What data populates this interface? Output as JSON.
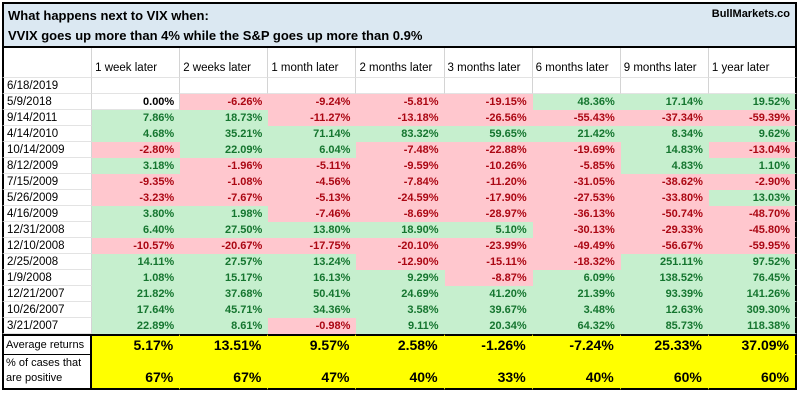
{
  "title": {
    "line1": "What happens next to VIX when:",
    "line2": "VVIX goes up more than 4% while the S&P goes up more than 0.9%",
    "brand": "BullMarkets.co"
  },
  "chart_data": {
    "type": "table",
    "title": "What happens next to VIX when:",
    "subtitle": "VVIX goes up more than 4% while the S&P goes up more than 0.9%",
    "source": "BullMarkets.co",
    "columns": [
      "1 week later",
      "2 weeks later",
      "1 month later",
      "2 months later",
      "3 months later",
      "6 months later",
      "9 months later",
      "1 year later"
    ],
    "rows": [
      {
        "date": "6/18/2019",
        "values": [
          "",
          "",
          "",
          "",
          "",
          "",
          "",
          ""
        ]
      },
      {
        "date": "5/9/2018",
        "values": [
          "0.00%",
          "-6.26%",
          "-9.24%",
          "-5.81%",
          "-19.15%",
          "48.36%",
          "17.14%",
          "19.52%"
        ]
      },
      {
        "date": "9/14/2011",
        "values": [
          "7.86%",
          "18.73%",
          "-11.27%",
          "-13.18%",
          "-26.56%",
          "-55.43%",
          "-37.34%",
          "-59.39%"
        ]
      },
      {
        "date": "4/14/2010",
        "values": [
          "4.68%",
          "35.21%",
          "71.14%",
          "83.32%",
          "59.65%",
          "21.42%",
          "8.34%",
          "9.62%"
        ]
      },
      {
        "date": "10/14/2009",
        "values": [
          "-2.80%",
          "22.09%",
          "6.04%",
          "-7.48%",
          "-22.88%",
          "-19.69%",
          "14.83%",
          "-13.04%"
        ]
      },
      {
        "date": "8/12/2009",
        "values": [
          "3.18%",
          "-1.96%",
          "-5.11%",
          "-9.59%",
          "-10.26%",
          "-5.85%",
          "4.83%",
          "1.10%"
        ]
      },
      {
        "date": "7/15/2009",
        "values": [
          "-9.35%",
          "-1.08%",
          "-4.56%",
          "-7.84%",
          "-11.20%",
          "-31.05%",
          "-38.62%",
          "-2.90%"
        ]
      },
      {
        "date": "5/26/2009",
        "values": [
          "-3.23%",
          "-7.67%",
          "-5.13%",
          "-24.59%",
          "-17.90%",
          "-27.53%",
          "-33.80%",
          "13.03%"
        ]
      },
      {
        "date": "4/16/2009",
        "values": [
          "3.80%",
          "1.98%",
          "-7.46%",
          "-8.69%",
          "-28.97%",
          "-36.13%",
          "-50.74%",
          "-48.70%"
        ]
      },
      {
        "date": "12/31/2008",
        "values": [
          "6.40%",
          "27.50%",
          "13.80%",
          "18.90%",
          "5.10%",
          "-30.13%",
          "-29.33%",
          "-45.80%"
        ]
      },
      {
        "date": "12/10/2008",
        "values": [
          "-10.57%",
          "-20.67%",
          "-17.75%",
          "-20.10%",
          "-23.99%",
          "-49.49%",
          "-56.67%",
          "-59.95%"
        ]
      },
      {
        "date": "2/25/2008",
        "values": [
          "14.11%",
          "27.57%",
          "13.24%",
          "-12.90%",
          "-15.11%",
          "-18.32%",
          "251.11%",
          "97.52%"
        ]
      },
      {
        "date": "1/9/2008",
        "values": [
          "1.08%",
          "15.17%",
          "16.13%",
          "9.29%",
          "-8.87%",
          "6.09%",
          "138.52%",
          "76.45%"
        ]
      },
      {
        "date": "12/21/2007",
        "values": [
          "21.82%",
          "37.68%",
          "50.41%",
          "24.69%",
          "41.20%",
          "21.39%",
          "93.39%",
          "141.26%"
        ]
      },
      {
        "date": "10/26/2007",
        "values": [
          "17.64%",
          "45.71%",
          "34.36%",
          "3.58%",
          "39.67%",
          "3.48%",
          "12.63%",
          "309.30%"
        ]
      },
      {
        "date": "3/21/2007",
        "values": [
          "22.89%",
          "8.61%",
          "-0.98%",
          "9.11%",
          "20.34%",
          "64.32%",
          "85.73%",
          "118.38%"
        ]
      }
    ],
    "summary_rows": [
      {
        "label": "Average returns",
        "values": [
          "5.17%",
          "13.51%",
          "9.57%",
          "2.58%",
          "-1.26%",
          "-7.24%",
          "25.33%",
          "37.09%"
        ]
      },
      {
        "label": "% of cases that are positive",
        "values": [
          "67%",
          "67%",
          "47%",
          "40%",
          "33%",
          "40%",
          "60%",
          "60%"
        ]
      }
    ]
  },
  "colors": {
    "positive_bg": "#c6efce",
    "positive_text": "#15752f",
    "negative_bg": "#ffc7ce",
    "negative_text": "#ab0713",
    "zero_bg": "#ffffff",
    "summary_bg": "#ffff00",
    "title_bg": "#dbe8f2",
    "border": "#000000"
  }
}
